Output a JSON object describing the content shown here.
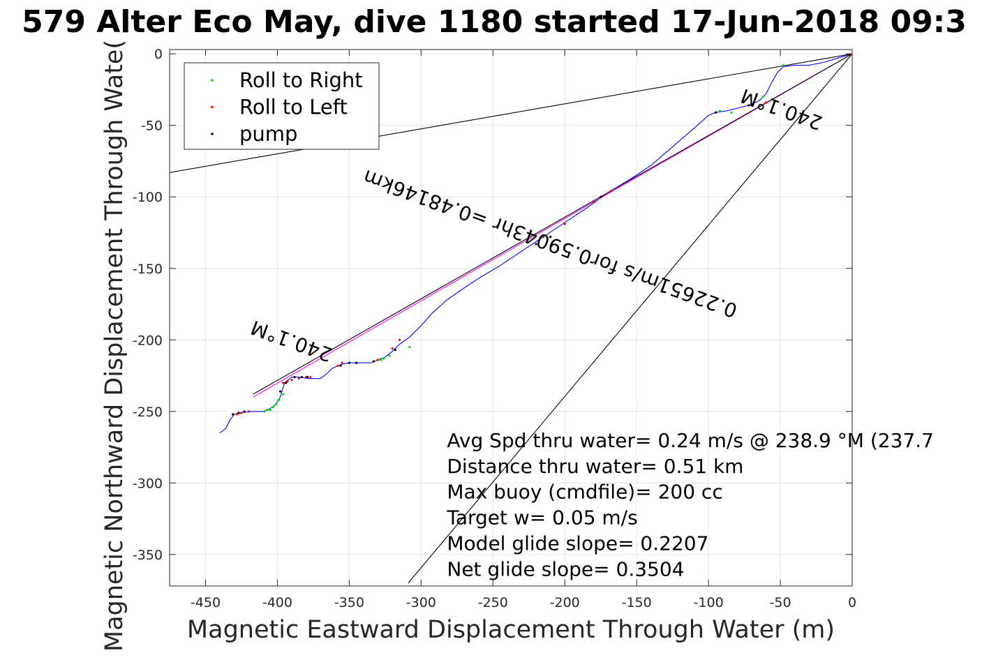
{
  "chart_data": {
    "type": "line",
    "title": "579 Alter Eco May, dive 1180 started 17-Jun-2018 09:3",
    "xlabel": "Magnetic Eastward Displacement Through Water (m)",
    "ylabel": "Magnetic Northward Displacement Through Wate(",
    "xlim": [
      -475,
      0
    ],
    "ylim": [
      -372,
      3
    ],
    "xticks": [
      -450,
      -400,
      -350,
      -300,
      -250,
      -200,
      -150,
      -100,
      -50,
      0
    ],
    "xtick_labels": [
      "-450",
      "-400",
      "-350",
      "-300",
      "-250",
      "-200",
      "-150",
      "-100",
      "-50",
      "0"
    ],
    "yticks": [
      0,
      -50,
      -100,
      -150,
      -200,
      -250,
      -300,
      -350
    ],
    "ytick_labels": [
      "0",
      "-50",
      "-100",
      "-150",
      "-200",
      "-250",
      "-300",
      "-350"
    ],
    "grid": true,
    "legend": {
      "location": "top-left",
      "entries": [
        {
          "label": "Roll to Right",
          "color": "#00dd00",
          "marker": "dot"
        },
        {
          "label": "Roll to Left",
          "color": "#ff0000",
          "marker": "dot"
        },
        {
          "label": "pump",
          "color": "#000000",
          "marker": "dot"
        }
      ]
    },
    "series": [
      {
        "style": "line",
        "color": "#0000ff",
        "x": [
          0,
          -10,
          -20,
          -30,
          -40,
          -48,
          -52,
          -56,
          -60,
          -65,
          -72,
          -80,
          -88,
          -95,
          -100,
          -110,
          -125,
          -140,
          -155,
          -170,
          -185,
          -200,
          -215,
          -230,
          -245,
          -260,
          -272,
          -282,
          -292,
          -300,
          -308,
          -315,
          -320,
          -325,
          -330,
          -335,
          -340,
          -345,
          -350,
          -355,
          -360,
          -362,
          -365,
          -370,
          -378,
          -385,
          -390,
          -395,
          -398,
          -401,
          -405,
          -410,
          -415,
          -420,
          -425,
          -430,
          -433,
          -436,
          -440
        ],
        "y": [
          0,
          -3,
          -6,
          -8,
          -8,
          -9,
          -13,
          -20,
          -28,
          -33,
          -36,
          -38,
          -40,
          -41,
          -43,
          -52,
          -65,
          -78,
          -88,
          -97,
          -108,
          -118,
          -128,
          -138,
          -148,
          -157,
          -165,
          -172,
          -181,
          -190,
          -198,
          -203,
          -208,
          -212,
          -214,
          -216,
          -216,
          -216,
          -216,
          -217,
          -219,
          -220,
          -223,
          -227,
          -227,
          -226,
          -226,
          -230,
          -240,
          -245,
          -248,
          -250,
          -250,
          -250,
          -251,
          -252,
          -256,
          -262,
          -265
        ]
      },
      {
        "style": "line",
        "color": "#ff00ff",
        "x": [
          0,
          -417
        ],
        "y": [
          0,
          -240
        ]
      },
      {
        "style": "line",
        "color": "#000000",
        "x": [
          0,
          -417
        ],
        "y": [
          0,
          -238
        ]
      },
      {
        "style": "line",
        "color": "#000000",
        "x": [
          0,
          -475
        ],
        "y": [
          0,
          -83
        ]
      },
      {
        "style": "line",
        "color": "#000000",
        "x": [
          0,
          -309
        ],
        "y": [
          0,
          -370
        ]
      }
    ],
    "markers": {
      "roll_right": {
        "color": "#00dd00",
        "x": [
          -48,
          -62,
          -92,
          -84,
          -210,
          -308,
          -322,
          -326,
          -328,
          -396,
          -399,
          -401,
          -403,
          -405,
          -407,
          -409
        ],
        "y": [
          -8,
          -30,
          -40,
          -41,
          -128,
          -205,
          -211,
          -213,
          -214,
          -238,
          -242,
          -245,
          -247,
          -249,
          -249,
          -250
        ]
      },
      "roll_left": {
        "color": "#ff0000",
        "x": [
          -60,
          -70,
          -95,
          -168,
          -180,
          -200,
          -215,
          -315,
          -320,
          -330,
          -345,
          -355,
          -358,
          -377,
          -380,
          -385,
          -390,
          -393,
          -396,
          -420,
          -425,
          -428,
          -0.5
        ],
        "y": [
          -34,
          -36,
          -41,
          -96,
          -104,
          -119,
          -128,
          -200,
          -206,
          -214,
          -216,
          -216,
          -218,
          -226,
          -226,
          -227,
          -228,
          -229,
          -230,
          -250,
          -251,
          -252,
          -0.5
        ]
      },
      "pump": {
        "color": "#000000",
        "x": [
          -72,
          -95,
          -175,
          -210,
          -220,
          -318,
          -333,
          -345,
          -350,
          -356,
          -379,
          -383,
          -388,
          -394,
          -398,
          -423,
          -427,
          -431
        ],
        "y": [
          -36,
          -41,
          -100,
          -128,
          -133,
          -207,
          -215,
          -216,
          -216,
          -218,
          -226,
          -226,
          -226,
          -230,
          -236,
          -250,
          -251,
          -252
        ]
      }
    },
    "annotations": [
      {
        "text": "240.1°M",
        "x": -49,
        "y": -38,
        "rotation_deg": 200
      },
      {
        "text": "0.22651m/s for0.59043hr =0.48146km",
        "x": -210,
        "y": -132,
        "rotation_deg": 200
      },
      {
        "text": "240.1°M",
        "x": -390,
        "y": -200,
        "rotation_deg": 200
      },
      {
        "text": "Avg Spd thru water=  0.24 m/s @ 238.9 °M (237.7",
        "x": -282,
        "y": -271,
        "rotation_deg": 0
      },
      {
        "text": "Distance thru water=  0.51 km",
        "x": -282,
        "y": -289,
        "rotation_deg": 0
      },
      {
        "text": "Max buoy (cmdfile)= 200 cc",
        "x": -282,
        "y": -307,
        "rotation_deg": 0
      },
      {
        "text": "Target w= 0.05 m/s",
        "x": -282,
        "y": -325,
        "rotation_deg": 0
      },
      {
        "text": "Model glide slope= 0.2207",
        "x": -282,
        "y": -343,
        "rotation_deg": 0
      },
      {
        "text": "Net glide slope= 0.3504",
        "x": -282,
        "y": -361,
        "rotation_deg": 0
      }
    ]
  }
}
